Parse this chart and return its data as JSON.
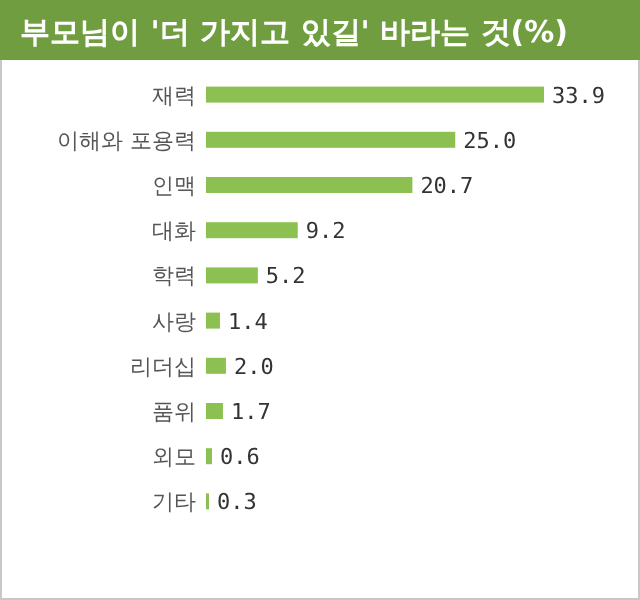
{
  "chart_data": {
    "type": "bar",
    "orientation": "horizontal",
    "title": "부모님이 '더 가지고 있길' 바라는 것(%)",
    "categories": [
      "재력",
      "이해와 포용력",
      "인맥",
      "대화",
      "학력",
      "사랑",
      "리더십",
      "품위",
      "외모",
      "기타"
    ],
    "values": [
      33.9,
      25.0,
      20.7,
      9.2,
      5.2,
      1.4,
      2.0,
      1.7,
      0.6,
      0.3
    ],
    "value_labels": [
      "33.9",
      "25.0",
      "20.7",
      "9.2",
      "5.2",
      "1.4",
      "2.0",
      "1.7",
      "0.6",
      "0.3"
    ],
    "color": "#8cc152"
  }
}
